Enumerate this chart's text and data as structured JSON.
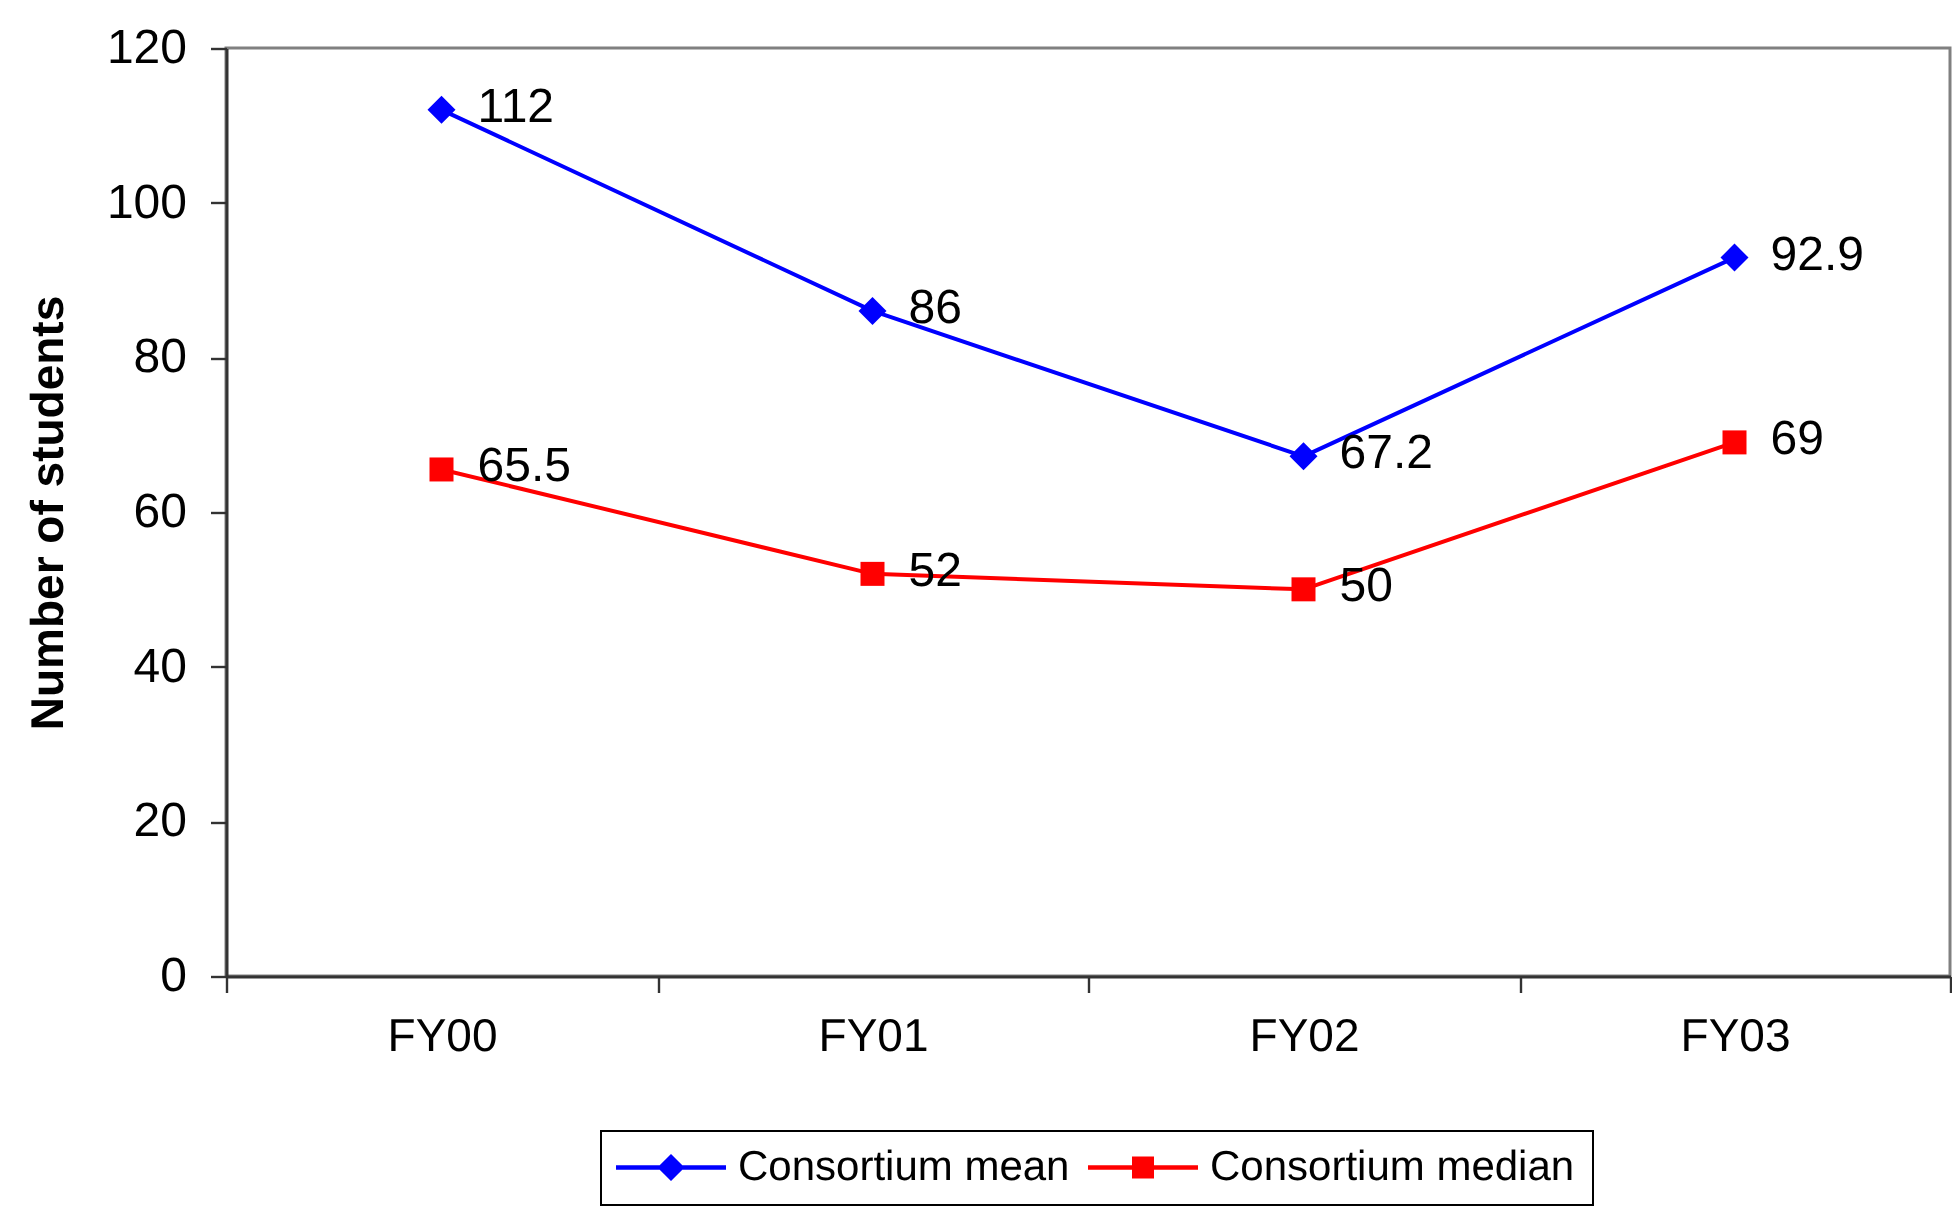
{
  "chart_data": {
    "type": "line",
    "ylabel": "Number of students",
    "categories": [
      "FY00",
      "FY01",
      "FY02",
      "FY03"
    ],
    "series": [
      {
        "name": "Consortium mean",
        "color": "#0000ff",
        "marker": "diamond",
        "values": [
          112,
          86,
          67.2,
          92.9
        ]
      },
      {
        "name": "Consortium median",
        "color": "#ff0000",
        "marker": "square",
        "values": [
          65.5,
          52,
          50,
          69
        ]
      }
    ],
    "ylim": [
      0,
      120
    ],
    "yticks": [
      0,
      20,
      40,
      60,
      80,
      100,
      120
    ],
    "legend": "bottom",
    "data_labels": true
  }
}
